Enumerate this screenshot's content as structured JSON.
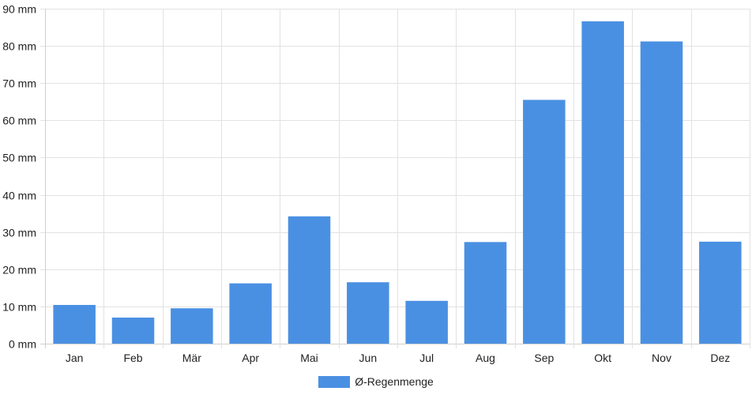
{
  "chart_data": {
    "type": "bar",
    "categories": [
      "Jan",
      "Feb",
      "Mär",
      "Apr",
      "Mai",
      "Jun",
      "Jul",
      "Aug",
      "Sep",
      "Okt",
      "Nov",
      "Dez"
    ],
    "series": [
      {
        "name": "Ø-Regenmenge",
        "values": [
          10.4,
          7.0,
          9.5,
          16.2,
          34.2,
          16.5,
          11.5,
          27.3,
          65.5,
          86.6,
          81.2,
          27.4
        ],
        "color": "#4a90e2"
      }
    ],
    "ylim": [
      0,
      90
    ],
    "yticks": [
      0,
      10,
      20,
      30,
      40,
      50,
      60,
      70,
      80,
      90
    ],
    "y_unit": "mm",
    "grid": true,
    "legend_position": "bottom"
  }
}
